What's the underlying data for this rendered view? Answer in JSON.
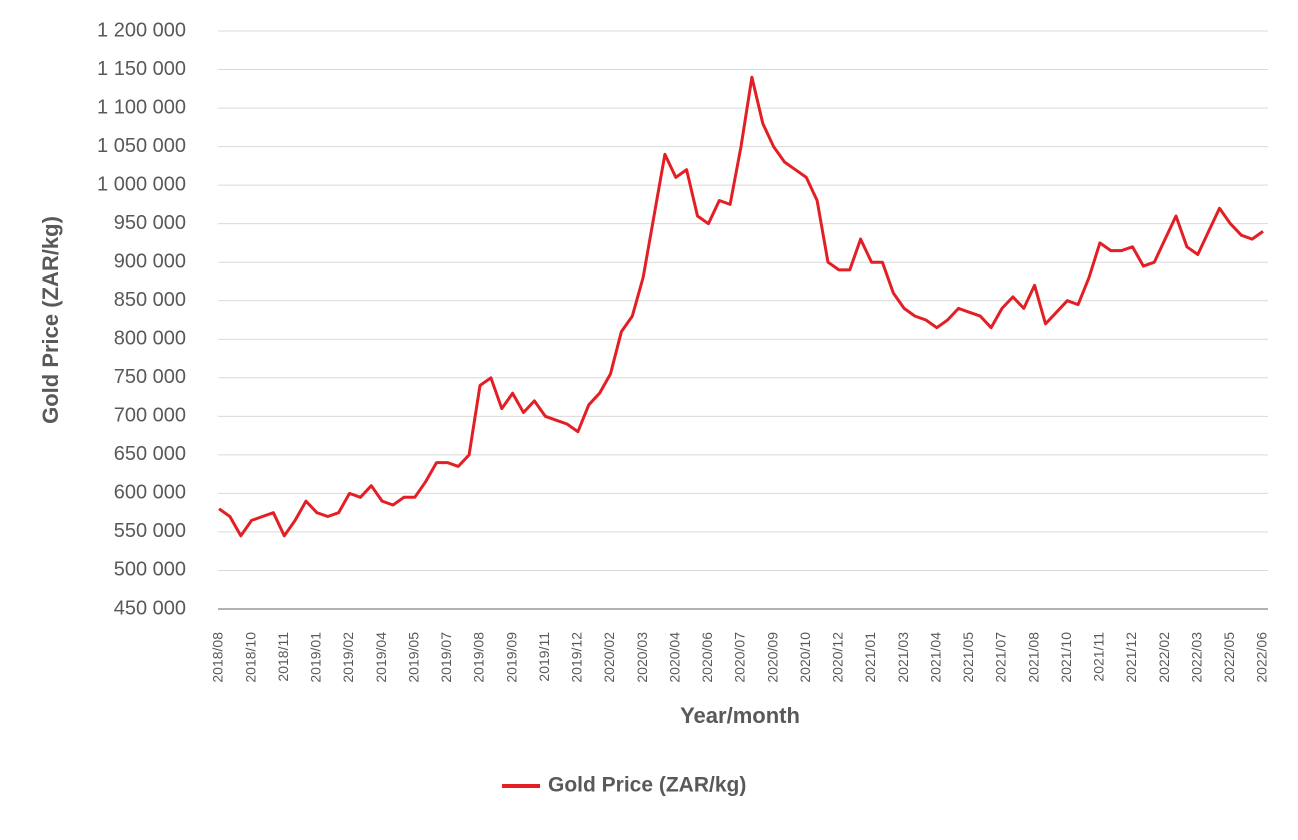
{
  "chart_data": {
    "type": "line",
    "x_label": "Year/month",
    "y_label": "Gold Price (ZAR/kg)",
    "categories": [
      "2018/08",
      null,
      null,
      "2018/10",
      null,
      null,
      "2018/11",
      null,
      null,
      "2019/01",
      null,
      null,
      "2019/02",
      null,
      null,
      "2019/04",
      null,
      null,
      "2019/05",
      null,
      null,
      "2019/07",
      null,
      null,
      "2019/08",
      null,
      null,
      "2019/09",
      null,
      null,
      "2019/11",
      null,
      null,
      "2019/12",
      null,
      null,
      "2020/02",
      null,
      null,
      "2020/03",
      null,
      null,
      "2020/04",
      null,
      null,
      "2020/06",
      null,
      null,
      "2020/07",
      null,
      null,
      "2020/09",
      null,
      null,
      "2020/10",
      null,
      null,
      "2020/12",
      null,
      null,
      "2021/01",
      null,
      null,
      "2021/03",
      null,
      null,
      "2021/04",
      null,
      null,
      "2021/05",
      null,
      null,
      "2021/07",
      null,
      null,
      "2021/08",
      null,
      null,
      "2021/10",
      null,
      null,
      "2021/11",
      null,
      null,
      "2021/12",
      null,
      null,
      "2022/02",
      null,
      null,
      "2022/03",
      null,
      null,
      "2022/05",
      null,
      null,
      "2022/06"
    ],
    "series": [
      {
        "name": "Gold Price (ZAR/kg)",
        "color": "#e31e24",
        "values": [
          580000,
          570000,
          545000,
          565000,
          570000,
          575000,
          545000,
          565000,
          590000,
          575000,
          570000,
          575000,
          600000,
          595000,
          610000,
          590000,
          585000,
          595000,
          595000,
          615000,
          640000,
          640000,
          635000,
          650000,
          740000,
          750000,
          710000,
          730000,
          705000,
          720000,
          700000,
          695000,
          690000,
          680000,
          715000,
          730000,
          755000,
          810000,
          830000,
          880000,
          960000,
          1040000,
          1010000,
          1020000,
          960000,
          950000,
          980000,
          975000,
          1050000,
          1140000,
          1080000,
          1050000,
          1030000,
          1020000,
          1010000,
          980000,
          900000,
          890000,
          890000,
          930000,
          900000,
          900000,
          860000,
          840000,
          830000,
          825000,
          815000,
          825000,
          840000,
          835000,
          830000,
          815000,
          840000,
          855000,
          840000,
          870000,
          820000,
          835000,
          850000,
          845000,
          880000,
          925000,
          915000,
          915000,
          920000,
          895000,
          900000,
          930000,
          960000,
          920000,
          910000,
          940000,
          970000,
          950000,
          935000,
          930000,
          940000
        ]
      }
    ],
    "ylim": [
      450000,
      1200000
    ],
    "yticks": [
      {
        "value": 450000,
        "label": "450 000"
      },
      {
        "value": 500000,
        "label": "500 000"
      },
      {
        "value": 550000,
        "label": "550 000"
      },
      {
        "value": 600000,
        "label": "600 000"
      },
      {
        "value": 650000,
        "label": "650 000"
      },
      {
        "value": 700000,
        "label": "700 000"
      },
      {
        "value": 750000,
        "label": "750 000"
      },
      {
        "value": 800000,
        "label": "800 000"
      },
      {
        "value": 850000,
        "label": "850 000"
      },
      {
        "value": 900000,
        "label": "900 000"
      },
      {
        "value": 950000,
        "label": "950 000"
      },
      {
        "value": 1000000,
        "label": "1 000 000"
      },
      {
        "value": 1050000,
        "label": "1 050 000"
      },
      {
        "value": 1100000,
        "label": "1 100 000"
      },
      {
        "value": 1150000,
        "label": "1 150 000"
      },
      {
        "value": 1200000,
        "label": "1 200 000"
      }
    ],
    "grid": true,
    "legend": "bottom"
  }
}
